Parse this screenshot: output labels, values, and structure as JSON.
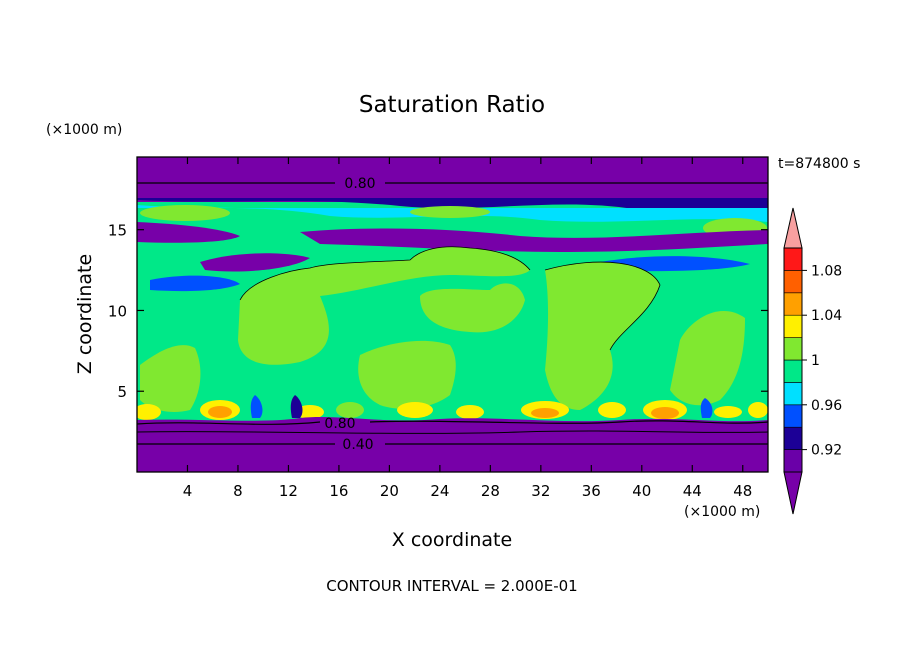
{
  "chart_data": {
    "type": "heatmap",
    "title": "Saturation Ratio",
    "xlabel": "X coordinate",
    "ylabel": "Z coordinate",
    "x_unit": "(×1000 m)",
    "y_unit": "(×1000 m)",
    "time_label": "t=874800 s",
    "footer": "CONTOUR INTERVAL = 2.000E-01",
    "xlim": [
      0,
      50
    ],
    "ylim": [
      0,
      19.5
    ],
    "x_ticks": [
      4,
      8,
      12,
      16,
      20,
      24,
      28,
      32,
      36,
      40,
      44,
      48
    ],
    "y_ticks": [
      5,
      10,
      15
    ],
    "colorbar": {
      "levels": [
        0.92,
        0.96,
        1,
        1.04,
        1.08
      ],
      "tick_labels": [
        "0.92",
        "0.96",
        "1",
        "1.04",
        "1.08"
      ],
      "bands": [
        {
          "range": "<0.90",
          "color": "#7700a8"
        },
        {
          "range": "0.90-0.92",
          "color": "#6a00a8"
        },
        {
          "range": "0.92-0.94",
          "color": "#1c0096"
        },
        {
          "range": "0.94-0.96",
          "color": "#0050ff"
        },
        {
          "range": "0.96-0.98",
          "color": "#00e0ff"
        },
        {
          "range": "0.98-1.00",
          "color": "#00e888"
        },
        {
          "range": "1.00-1.02",
          "color": "#80e830"
        },
        {
          "range": "1.02-1.04",
          "color": "#fff000"
        },
        {
          "range": "1.04-1.06",
          "color": "#ffa000"
        },
        {
          "range": "1.06-1.08",
          "color": "#ff6000"
        },
        {
          "range": "1.08-1.10",
          "color": "#ff1818"
        },
        {
          "range": ">1.10",
          "color": "#f8a0a0"
        }
      ]
    },
    "contour_labels": [
      {
        "text": "0.80",
        "x": 17.6,
        "z": 18.3
      },
      {
        "text": "0.80",
        "x": 17.0,
        "z": 3.0
      },
      {
        "text": "0.40",
        "x": 17.6,
        "z": 1.8
      }
    ],
    "colors": {
      "dry": "#7700a8",
      "deep_blue": "#1c0096",
      "blue": "#0050ff",
      "cyan": "#00e0ff",
      "sea_green": "#00e888",
      "green": "#80e830",
      "yellow": "#fff000",
      "orange": "#ffa000",
      "red": "#ff1818"
    }
  }
}
